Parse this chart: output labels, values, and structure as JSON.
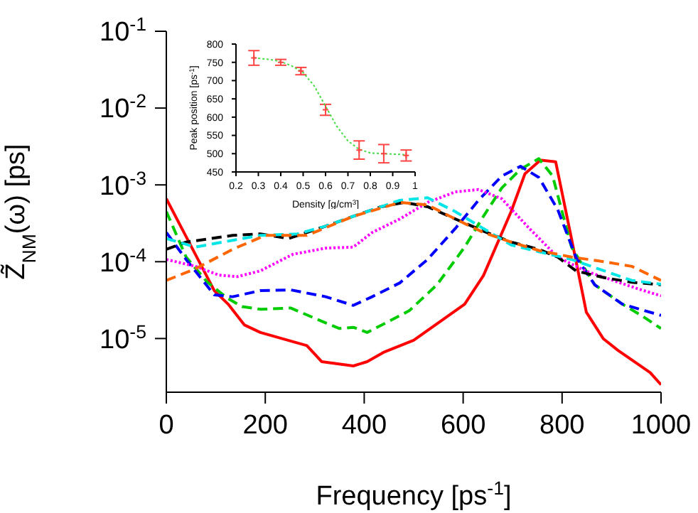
{
  "chart_data": [
    {
      "type": "line",
      "xlabel": "Frequency [ps$^{-1}$]",
      "ylabel": "Z̃$_{NM}$(ω) [ps]",
      "log": "y",
      "xlim": [
        0,
        1000
      ],
      "xticks": [
        0,
        200,
        400,
        600,
        800,
        1000
      ],
      "ylim": [
        2e-06,
        0.1
      ],
      "yticks": [
        {
          "value": 1e-05,
          "label": "10$^{-5}$"
        },
        {
          "value": 0.0001,
          "label": "10$^{-4}$"
        },
        {
          "value": 0.001,
          "label": "10$^{-3}$"
        },
        {
          "value": 0.01,
          "label": "10$^{-2}$"
        },
        {
          "value": 0.1,
          "label": "10$^{-1}$"
        }
      ],
      "grid": false,
      "legend": false,
      "series": [
        {
          "color": "#ff0000",
          "line_style": "solid",
          "x": [
            0,
            97,
            125,
            158,
            190,
            284,
            314,
            378,
            406,
            439,
            500,
            566,
            603,
            641,
            697,
            725,
            756,
            787,
            819,
            849,
            883,
            913,
            950,
            978,
            1000
          ],
          "values": [
            0.00066,
            4.2e-05,
            2.8e-05,
            1.5e-05,
            1.2e-05,
            8.1e-06,
            5e-06,
            4.4e-06,
            5e-06,
            6.6e-06,
            9.5e-06,
            1.9e-05,
            2.8e-05,
            6.6e-05,
            0.00045,
            0.0014,
            0.0021,
            0.002,
            0.0002,
            2.2e-05,
            1e-05,
            7e-06,
            4.8e-06,
            3.6e-06,
            2.5e-06
          ]
        },
        {
          "color": "#00cc00",
          "line_style": "dashed",
          "x": [
            0,
            40,
            83,
            125,
            153,
            190,
            251,
            322,
            350,
            378,
            406,
            444,
            491,
            547,
            603,
            641,
            678,
            716,
            753,
            781,
            819,
            866,
            922,
            960,
            1000
          ],
          "values": [
            0.00045,
            0.000115,
            5.4e-05,
            3.3e-05,
            2.6e-05,
            2.4e-05,
            2.5e-05,
            1.6e-05,
            1.35e-05,
            1.4e-05,
            1.2e-05,
            1.6e-05,
            2.3e-05,
            5e-05,
            0.000155,
            0.00039,
            0.00091,
            0.0016,
            0.0022,
            0.0013,
            0.000155,
            5e-05,
            2.8e-05,
            2e-05,
            1.35e-05
          ]
        },
        {
          "color": "#0000ff",
          "line_style": "dashed",
          "x": [
            0,
            40,
            97,
            134,
            190,
            251,
            322,
            378,
            416,
            472,
            528,
            584,
            631,
            678,
            716,
            753,
            791,
            828,
            866,
            922,
            1000
          ],
          "values": [
            0.00024,
            0.000107,
            3.7e-05,
            3.5e-05,
            4.2e-05,
            4.3e-05,
            3.5e-05,
            2.7e-05,
            3.5e-05,
            5.3e-05,
            0.000107,
            0.00027,
            0.00063,
            0.0013,
            0.00175,
            0.00125,
            0.00048,
            0.000115,
            5e-05,
            2.8e-05,
            2e-05
          ]
        },
        {
          "color": "#ff00ff",
          "line_style": "dotted",
          "x": [
            0,
            59,
            106,
            144,
            190,
            256,
            322,
            378,
            416,
            472,
            528,
            584,
            631,
            678,
            734,
            791,
            847,
            903,
            960,
            1000
          ],
          "values": [
            0.000107,
            8.7e-05,
            6.7e-05,
            6.4e-05,
            7.6e-05,
            0.000125,
            0.00015,
            0.000155,
            0.00024,
            0.00036,
            0.00059,
            0.00081,
            0.00087,
            0.00066,
            0.00027,
            0.000115,
            7.6e-05,
            5.7e-05,
            4.3e-05,
            3.6e-05
          ]
        },
        {
          "color": "#000000",
          "line_style": "dashed",
          "x": [
            0,
            40,
            134,
            190,
            247,
            322,
            378,
            434,
            481,
            528,
            584,
            641,
            697,
            753,
            791,
            828,
            885,
            941,
            1000
          ],
          "values": [
            0.000145,
            0.00018,
            0.00022,
            0.00023,
            0.0002,
            0.00029,
            0.00039,
            0.00052,
            0.00059,
            0.00052,
            0.00036,
            0.00025,
            0.00018,
            0.000145,
            0.000115,
            7.6e-05,
            6.2e-05,
            5.4e-05,
            5e-05
          ]
        },
        {
          "color": "#00e5e5",
          "line_style": "dashed",
          "x": [
            0,
            59,
            134,
            190,
            265,
            322,
            378,
            472,
            528,
            584,
            641,
            697,
            753,
            819,
            885,
            941,
            1000
          ],
          "values": [
            0.0002,
            0.000155,
            0.00019,
            0.00022,
            0.00023,
            0.00029,
            0.00039,
            0.00063,
            0.00068,
            0.00045,
            0.00027,
            0.000165,
            0.000135,
            0.000107,
            7.6e-05,
            5.7e-05,
            5.1e-05
          ]
        },
        {
          "color": "#ff6600",
          "line_style": "dashed",
          "x": [
            0,
            59,
            134,
            200,
            284,
            378,
            472,
            528,
            584,
            641,
            697,
            753,
            819,
            885,
            941,
            1000
          ],
          "values": [
            5.7e-05,
            8.1e-05,
            0.000145,
            0.00022,
            0.00022,
            0.00039,
            0.00059,
            0.00055,
            0.00036,
            0.00024,
            0.00018,
            0.00014,
            0.000115,
            0.0001,
            8.7e-05,
            5.7e-05
          ]
        }
      ]
    },
    {
      "type": "line",
      "xlabel": "Density [g/cm$^{3}$]",
      "ylabel": "Peak position [ps$^{-1}$]",
      "xlim": [
        0.2,
        1
      ],
      "xticks": [
        0.2,
        0.3,
        0.4,
        0.5,
        0.6,
        0.7,
        0.8,
        0.9,
        1
      ],
      "ylim": [
        450,
        800
      ],
      "yticks": [
        450,
        500,
        550,
        600,
        650,
        700,
        750,
        800
      ],
      "grid": false,
      "legend": false,
      "series": [
        {
          "color": "#44dd44",
          "line_style": "dotted",
          "x": [
            0.28,
            0.35,
            0.4,
            0.45,
            0.5,
            0.55,
            0.6,
            0.65,
            0.7,
            0.75,
            0.8,
            0.85,
            0.9,
            0.96
          ],
          "values": [
            762,
            758,
            752,
            740,
            722,
            685,
            630,
            575,
            535,
            512,
            502,
            500,
            499,
            497
          ]
        },
        {
          "type": "scatter",
          "color": "#ff4444",
          "marker": "cross",
          "x": [
            0.28,
            0.4,
            0.49,
            0.6,
            0.75,
            0.86,
            0.96
          ],
          "values": [
            762,
            750,
            726,
            620,
            510,
            500,
            495
          ],
          "errors": [
            20,
            8,
            10,
            15,
            25,
            25,
            15
          ]
        }
      ]
    }
  ]
}
